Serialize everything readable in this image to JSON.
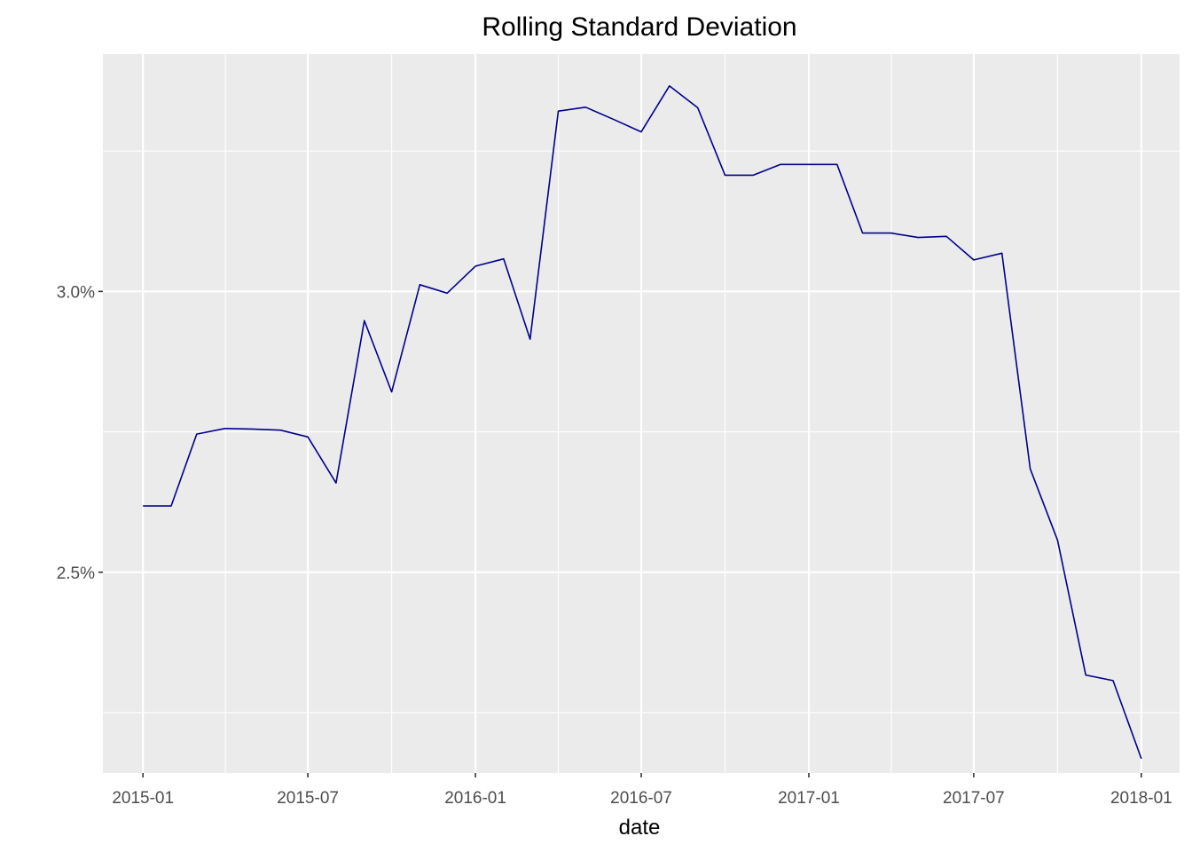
{
  "chart_data": {
    "type": "line",
    "title": "Rolling Standard Deviation",
    "xlabel": "date",
    "ylabel": "",
    "line_color": "#00008B",
    "panel_background": "#EBEBEB",
    "grid": true,
    "legend": "none",
    "x_ticks": [
      "2015-01",
      "2015-07",
      "2016-01",
      "2016-07",
      "2017-01",
      "2017-07",
      "2018-01"
    ],
    "y_ticks": [
      "2.5%",
      "3.0%"
    ],
    "ylim": [
      2.1425,
      3.4225
    ],
    "xlim": [
      "2014-11-18",
      "2018-02-12"
    ],
    "series": [
      {
        "x": [
          "2015-01-01",
          "2015-02-01",
          "2015-03-01",
          "2015-04-01",
          "2015-05-01",
          "2015-06-01",
          "2015-07-01",
          "2015-08-01",
          "2015-09-01",
          "2015-10-01",
          "2015-11-01",
          "2015-12-01",
          "2016-01-01",
          "2016-02-01",
          "2016-03-01",
          "2016-04-01",
          "2016-05-01",
          "2016-06-01",
          "2016-07-01",
          "2016-08-01",
          "2016-09-01",
          "2016-10-01",
          "2016-11-01",
          "2016-12-01",
          "2017-01-01",
          "2017-02-01",
          "2017-03-01",
          "2017-04-01",
          "2017-05-01",
          "2017-06-01",
          "2017-07-01",
          "2017-08-01",
          "2017-09-01",
          "2017-10-01",
          "2017-11-01",
          "2017-12-01",
          "2018-01-01"
        ],
        "values": [
          2.618,
          2.618,
          2.746,
          2.756,
          2.755,
          2.753,
          2.741,
          2.659,
          2.948,
          2.821,
          3.012,
          2.997,
          3.045,
          3.058,
          2.915,
          3.321,
          3.328,
          3.306,
          3.284,
          3.366,
          3.327,
          3.207,
          3.207,
          3.226,
          3.226,
          3.226,
          3.104,
          3.104,
          3.096,
          3.098,
          3.056,
          3.068,
          2.684,
          2.557,
          2.317,
          2.307,
          2.168
        ]
      }
    ]
  }
}
